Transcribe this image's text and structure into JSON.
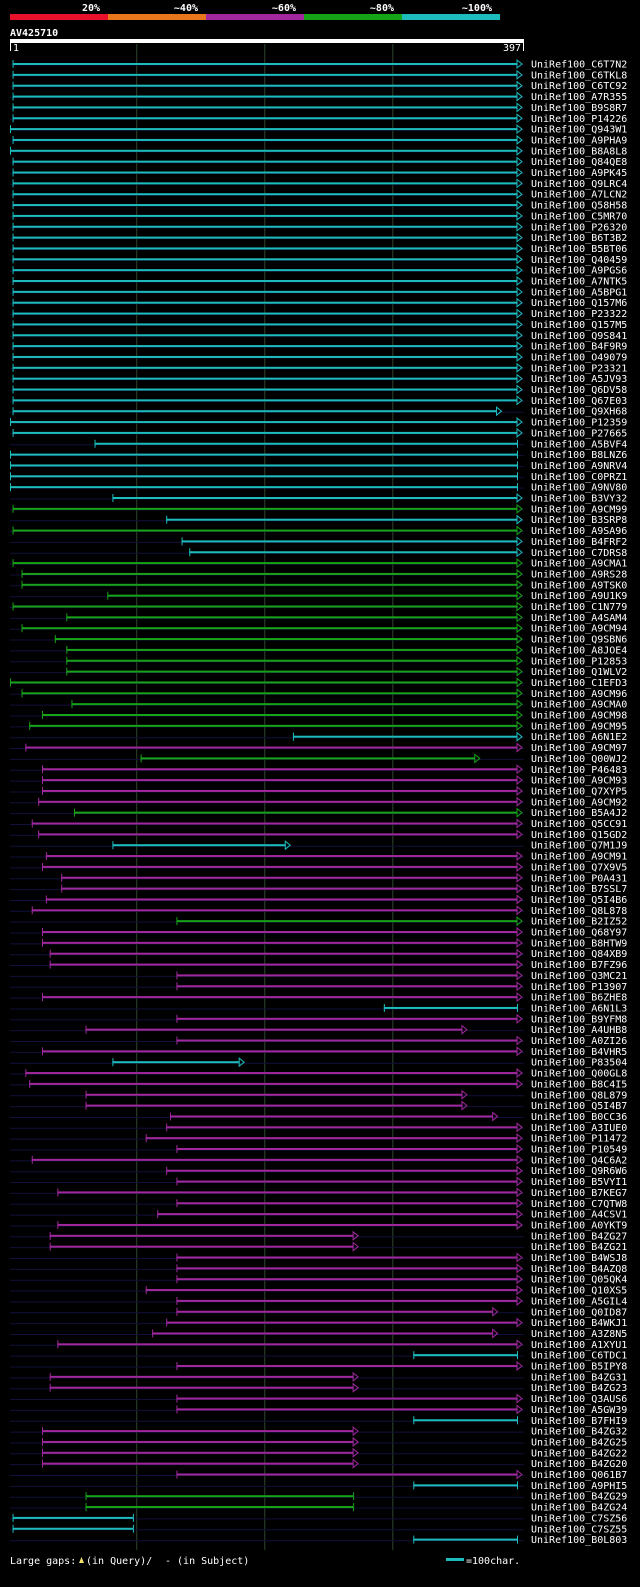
{
  "chart_data": {
    "type": "alignment-overview",
    "query_id": "AV425710",
    "query_start": "1",
    "query_end": "397",
    "qlen": 397,
    "scale": {
      "labels": [
        "20%",
        "~40%",
        "~60%",
        "~80%",
        "~100%"
      ],
      "colors": [
        "#e8102a",
        "#e8761c",
        "#a0289c",
        "#17a317",
        "#1cbcbc"
      ]
    },
    "legend": {
      "gaps_prefix": "Large gaps: ",
      "gaps_query": "(in Query)/",
      "gaps_subject": "- (in Subject)",
      "scale_label": "=100char."
    },
    "hits": [
      {
        "id": "UniRef100_C6T7N2",
        "s": 3,
        "e": 397,
        "c": "cy",
        "a": 1
      },
      {
        "id": "UniRef100_C6TKL8",
        "s": 3,
        "e": 397,
        "c": "cy",
        "a": 1
      },
      {
        "id": "UniRef100_C6TC92",
        "s": 3,
        "e": 397,
        "c": "cy",
        "a": 1
      },
      {
        "id": "UniRef100_A7R355",
        "s": 3,
        "e": 397,
        "c": "cy",
        "a": 1
      },
      {
        "id": "UniRef100_B9S8R7",
        "s": 3,
        "e": 397,
        "c": "cy",
        "a": 1
      },
      {
        "id": "UniRef100_P14226",
        "s": 3,
        "e": 397,
        "c": "cy",
        "a": 1
      },
      {
        "id": "UniRef100_Q943W1",
        "s": 1,
        "e": 397,
        "c": "cy",
        "a": 1
      },
      {
        "id": "UniRef100_A9PHA9",
        "s": 3,
        "e": 397,
        "c": "cy",
        "a": 1
      },
      {
        "id": "UniRef100_B8A8L8",
        "s": 1,
        "e": 397,
        "c": "cy",
        "a": 1
      },
      {
        "id": "UniRef100_Q84QE8",
        "s": 3,
        "e": 397,
        "c": "cy",
        "a": 1
      },
      {
        "id": "UniRef100_A9PK45",
        "s": 3,
        "e": 397,
        "c": "cy",
        "a": 1
      },
      {
        "id": "UniRef100_Q9LRC4",
        "s": 3,
        "e": 397,
        "c": "cy",
        "a": 1
      },
      {
        "id": "UniRef100_A7LCN2",
        "s": 3,
        "e": 397,
        "c": "cy",
        "a": 1
      },
      {
        "id": "UniRef100_Q58H58",
        "s": 3,
        "e": 397,
        "c": "cy",
        "a": 1
      },
      {
        "id": "UniRef100_C5MR70",
        "s": 3,
        "e": 397,
        "c": "cy",
        "a": 1
      },
      {
        "id": "UniRef100_P26320",
        "s": 3,
        "e": 397,
        "c": "cy",
        "a": 1
      },
      {
        "id": "UniRef100_B6T3B2",
        "s": 3,
        "e": 397,
        "c": "cy",
        "a": 1
      },
      {
        "id": "UniRef100_B5BT06",
        "s": 3,
        "e": 397,
        "c": "cy",
        "a": 1
      },
      {
        "id": "UniRef100_Q40459",
        "s": 3,
        "e": 397,
        "c": "cy",
        "a": 1
      },
      {
        "id": "UniRef100_A9PGS6",
        "s": 3,
        "e": 397,
        "c": "cy",
        "a": 1
      },
      {
        "id": "UniRef100_A7NTK5",
        "s": 3,
        "e": 397,
        "c": "cy",
        "a": 1
      },
      {
        "id": "UniRef100_A5BPG1",
        "s": 3,
        "e": 397,
        "c": "cy",
        "a": 1
      },
      {
        "id": "UniRef100_Q157M6",
        "s": 3,
        "e": 397,
        "c": "cy",
        "a": 1
      },
      {
        "id": "UniRef100_P23322",
        "s": 3,
        "e": 397,
        "c": "cy",
        "a": 1
      },
      {
        "id": "UniRef100_Q157M5",
        "s": 3,
        "e": 397,
        "c": "cy",
        "a": 1
      },
      {
        "id": "UniRef100_Q9S841",
        "s": 3,
        "e": 397,
        "c": "cy",
        "a": 1
      },
      {
        "id": "UniRef100_B4F9R9",
        "s": 3,
        "e": 397,
        "c": "cy",
        "a": 1
      },
      {
        "id": "UniRef100_O49079",
        "s": 3,
        "e": 397,
        "c": "cy",
        "a": 1
      },
      {
        "id": "UniRef100_P23321",
        "s": 3,
        "e": 397,
        "c": "cy",
        "a": 1
      },
      {
        "id": "UniRef100_A5JV93",
        "s": 3,
        "e": 397,
        "c": "cy",
        "a": 1
      },
      {
        "id": "UniRef100_Q6DV58",
        "s": 3,
        "e": 397,
        "c": "cy",
        "a": 1
      },
      {
        "id": "UniRef100_Q67E03",
        "s": 3,
        "e": 397,
        "c": "cy",
        "a": 1
      },
      {
        "id": "UniRef100_Q9XH68",
        "s": 3,
        "e": 381,
        "c": "cy",
        "a": 1
      },
      {
        "id": "UniRef100_P12359",
        "s": 1,
        "e": 397,
        "c": "cy",
        "a": 1
      },
      {
        "id": "UniRef100_P27665",
        "s": 3,
        "e": 397,
        "c": "cy",
        "a": 1
      },
      {
        "id": "UniRef100_A5BVF4",
        "s": 67,
        "e": 397,
        "c": "cy",
        "a": 0
      },
      {
        "id": "UniRef100_B8LNZ6",
        "s": 1,
        "e": 397,
        "c": "cy",
        "a": 0
      },
      {
        "id": "UniRef100_A9NRV4",
        "s": 1,
        "e": 397,
        "c": "cy",
        "a": 0
      },
      {
        "id": "UniRef100_C0PRZ1",
        "s": 1,
        "e": 397,
        "c": "cy",
        "a": 0
      },
      {
        "id": "UniRef100_A9NV80",
        "s": 1,
        "e": 397,
        "c": "cy",
        "a": 0
      },
      {
        "id": "UniRef100_B3VY32",
        "s": 81,
        "e": 397,
        "c": "cy",
        "a": 1
      },
      {
        "id": "UniRef100_A9CM99",
        "s": 3,
        "e": 397,
        "c": "gr",
        "a": 1
      },
      {
        "id": "UniRef100_B3SRP8",
        "s": 123,
        "e": 397,
        "c": "cy",
        "a": 1
      },
      {
        "id": "UniRef100_A9SA96",
        "s": 3,
        "e": 397,
        "c": "gr",
        "a": 1
      },
      {
        "id": "UniRef100_B4FRF2",
        "s": 135,
        "e": 397,
        "c": "cy",
        "a": 1
      },
      {
        "id": "UniRef100_C7DRS8",
        "s": 141,
        "e": 397,
        "c": "cy",
        "a": 1
      },
      {
        "id": "UniRef100_A9CMA1",
        "s": 3,
        "e": 397,
        "c": "gr",
        "a": 1
      },
      {
        "id": "UniRef100_A9RS28",
        "s": 10,
        "e": 397,
        "c": "gr",
        "a": 1
      },
      {
        "id": "UniRef100_A9TSK0",
        "s": 10,
        "e": 397,
        "c": "gr",
        "a": 1
      },
      {
        "id": "UniRef100_A9U1K9",
        "s": 77,
        "e": 397,
        "c": "gr",
        "a": 1
      },
      {
        "id": "UniRef100_C1N779",
        "s": 3,
        "e": 397,
        "c": "gr",
        "a": 1
      },
      {
        "id": "UniRef100_A4SAM4",
        "s": 45,
        "e": 397,
        "c": "gr",
        "a": 1
      },
      {
        "id": "UniRef100_A9CM94",
        "s": 10,
        "e": 397,
        "c": "gr",
        "a": 1
      },
      {
        "id": "UniRef100_Q9SBN6",
        "s": 36,
        "e": 397,
        "c": "gr",
        "a": 1
      },
      {
        "id": "UniRef100_A8JOE4",
        "s": 45,
        "e": 397,
        "c": "gr",
        "a": 1
      },
      {
        "id": "UniRef100_P12853",
        "s": 45,
        "e": 397,
        "c": "gr",
        "a": 1
      },
      {
        "id": "UniRef100_Q1WLV2",
        "s": 45,
        "e": 397,
        "c": "gr",
        "a": 1
      },
      {
        "id": "UniRef100_C1EFD3",
        "s": 1,
        "e": 397,
        "c": "gr",
        "a": 1
      },
      {
        "id": "UniRef100_A9CM96",
        "s": 10,
        "e": 397,
        "c": "gr",
        "a": 1
      },
      {
        "id": "UniRef100_A9CMA0",
        "s": 49,
        "e": 397,
        "c": "gr",
        "a": 1
      },
      {
        "id": "UniRef100_A9CM98",
        "s": 26,
        "e": 397,
        "c": "gr",
        "a": 1
      },
      {
        "id": "UniRef100_A9CM95",
        "s": 16,
        "e": 397,
        "c": "gr",
        "a": 1
      },
      {
        "id": "UniRef100_A6N1E2",
        "s": 222,
        "e": 397,
        "c": "cy",
        "a": 1
      },
      {
        "id": "UniRef100_A9CM97",
        "s": 13,
        "e": 397,
        "c": "pu",
        "a": 1
      },
      {
        "id": "UniRef100_Q00WJ2",
        "s": 103,
        "e": 364,
        "c": "gr",
        "a": 1
      },
      {
        "id": "UniRef100_P46483",
        "s": 26,
        "e": 397,
        "c": "pu",
        "a": 1
      },
      {
        "id": "UniRef100_A9CM93",
        "s": 26,
        "e": 397,
        "c": "pu",
        "a": 1
      },
      {
        "id": "UniRef100_Q7XYP5",
        "s": 26,
        "e": 397,
        "c": "pu",
        "a": 1
      },
      {
        "id": "UniRef100_A9CM92",
        "s": 23,
        "e": 397,
        "c": "pu",
        "a": 1
      },
      {
        "id": "UniRef100_B5A4J2",
        "s": 51,
        "e": 397,
        "c": "gr",
        "a": 1
      },
      {
        "id": "UniRef100_Q5CC91",
        "s": 18,
        "e": 397,
        "c": "pu",
        "a": 1
      },
      {
        "id": "UniRef100_Q15GD2",
        "s": 23,
        "e": 397,
        "c": "pu",
        "a": 1
      },
      {
        "id": "UniRef100_Q7M1J9",
        "s": 81,
        "e": 216,
        "c": "cy",
        "a": 1
      },
      {
        "id": "UniRef100_A9CM91",
        "s": 29,
        "e": 397,
        "c": "pu",
        "a": 1
      },
      {
        "id": "UniRef100_Q7X9V5",
        "s": 26,
        "e": 397,
        "c": "pu",
        "a": 1
      },
      {
        "id": "UniRef100_P0A431",
        "s": 41,
        "e": 397,
        "c": "pu",
        "a": 1
      },
      {
        "id": "UniRef100_B7SSL7",
        "s": 41,
        "e": 397,
        "c": "pu",
        "a": 1
      },
      {
        "id": "UniRef100_Q5I4B6",
        "s": 29,
        "e": 397,
        "c": "pu",
        "a": 1
      },
      {
        "id": "UniRef100_Q8L878",
        "s": 18,
        "e": 397,
        "c": "pu",
        "a": 1
      },
      {
        "id": "UniRef100_B2IZ52",
        "s": 131,
        "e": 397,
        "c": "gr",
        "a": 1
      },
      {
        "id": "UniRef100_Q68Y97",
        "s": 26,
        "e": 397,
        "c": "pu",
        "a": 1
      },
      {
        "id": "UniRef100_B8HTW9",
        "s": 26,
        "e": 397,
        "c": "pu",
        "a": 1
      },
      {
        "id": "UniRef100_Q84XB9",
        "s": 32,
        "e": 397,
        "c": "pu",
        "a": 1
      },
      {
        "id": "UniRef100_B7FZ96",
        "s": 32,
        "e": 397,
        "c": "pu",
        "a": 1
      },
      {
        "id": "UniRef100_Q3MC21",
        "s": 131,
        "e": 397,
        "c": "pu",
        "a": 1
      },
      {
        "id": "UniRef100_P13907",
        "s": 131,
        "e": 397,
        "c": "pu",
        "a": 1
      },
      {
        "id": "UniRef100_B6ZHE8",
        "s": 26,
        "e": 397,
        "c": "pu",
        "a": 1
      },
      {
        "id": "UniRef100_A6N1L3",
        "s": 293,
        "e": 397,
        "c": "cy",
        "a": 0
      },
      {
        "id": "UniRef100_B9YFM8",
        "s": 131,
        "e": 397,
        "c": "pu",
        "a": 1
      },
      {
        "id": "UniRef100_A4UHB8",
        "s": 60,
        "e": 354,
        "c": "pu",
        "a": 1
      },
      {
        "id": "UniRef100_A0ZI26",
        "s": 131,
        "e": 397,
        "c": "pu",
        "a": 1
      },
      {
        "id": "UniRef100_B4VHR5",
        "s": 26,
        "e": 397,
        "c": "pu",
        "a": 1
      },
      {
        "id": "UniRef100_P83504",
        "s": 81,
        "e": 180,
        "c": "cy",
        "a": 1
      },
      {
        "id": "UniRef100_Q00GL8",
        "s": 13,
        "e": 397,
        "c": "pu",
        "a": 1
      },
      {
        "id": "UniRef100_B8C4I5",
        "s": 16,
        "e": 397,
        "c": "pu",
        "a": 1
      },
      {
        "id": "UniRef100_Q8L879",
        "s": 60,
        "e": 354,
        "c": "pu",
        "a": 1
      },
      {
        "id": "UniRef100_Q5I4B7",
        "s": 60,
        "e": 354,
        "c": "pu",
        "a": 1
      },
      {
        "id": "UniRef100_B0CC36",
        "s": 126,
        "e": 378,
        "c": "pu",
        "a": 1
      },
      {
        "id": "UniRef100_A3IUE0",
        "s": 123,
        "e": 397,
        "c": "pu",
        "a": 1
      },
      {
        "id": "UniRef100_P11472",
        "s": 107,
        "e": 397,
        "c": "pu",
        "a": 1
      },
      {
        "id": "UniRef100_P10549",
        "s": 131,
        "e": 397,
        "c": "pu",
        "a": 1
      },
      {
        "id": "UniRef100_Q4C6A2",
        "s": 18,
        "e": 397,
        "c": "pu",
        "a": 1
      },
      {
        "id": "UniRef100_Q9R6W6",
        "s": 123,
        "e": 397,
        "c": "pu",
        "a": 1
      },
      {
        "id": "UniRef100_B5VYI1",
        "s": 131,
        "e": 397,
        "c": "pu",
        "a": 1
      },
      {
        "id": "UniRef100_B7KEG7",
        "s": 38,
        "e": 397,
        "c": "pu",
        "a": 1
      },
      {
        "id": "UniRef100_C7QTW8",
        "s": 131,
        "e": 397,
        "c": "pu",
        "a": 1
      },
      {
        "id": "UniRef100_A4CSV1",
        "s": 116,
        "e": 397,
        "c": "pu",
        "a": 1
      },
      {
        "id": "UniRef100_A0YKT9",
        "s": 38,
        "e": 397,
        "c": "pu",
        "a": 1
      },
      {
        "id": "UniRef100_B4ZG27",
        "s": 32,
        "e": 269,
        "c": "pu",
        "a": 1
      },
      {
        "id": "UniRef100_B4ZG21",
        "s": 32,
        "e": 269,
        "c": "pu",
        "a": 1
      },
      {
        "id": "UniRef100_B4WSJ8",
        "s": 131,
        "e": 397,
        "c": "pu",
        "a": 1
      },
      {
        "id": "UniRef100_B4AZQ8",
        "s": 131,
        "e": 397,
        "c": "pu",
        "a": 1
      },
      {
        "id": "UniRef100_Q05QK4",
        "s": 131,
        "e": 397,
        "c": "pu",
        "a": 1
      },
      {
        "id": "UniRef100_Q10XS5",
        "s": 107,
        "e": 397,
        "c": "pu",
        "a": 1
      },
      {
        "id": "UniRef100_A5GIL4",
        "s": 131,
        "e": 397,
        "c": "pu",
        "a": 1
      },
      {
        "id": "UniRef100_Q0ID87",
        "s": 131,
        "e": 378,
        "c": "pu",
        "a": 1
      },
      {
        "id": "UniRef100_B4WKJ1",
        "s": 123,
        "e": 397,
        "c": "pu",
        "a": 1
      },
      {
        "id": "UniRef100_A3Z8N5",
        "s": 112,
        "e": 378,
        "c": "pu",
        "a": 1
      },
      {
        "id": "UniRef100_A1XYU1",
        "s": 38,
        "e": 397,
        "c": "pu",
        "a": 1
      },
      {
        "id": "UniRef100_C6TDC1",
        "s": 316,
        "e": 397,
        "c": "cy",
        "a": 0
      },
      {
        "id": "UniRef100_B5IPY8",
        "s": 131,
        "e": 397,
        "c": "pu",
        "a": 1
      },
      {
        "id": "UniRef100_B4ZG31",
        "s": 32,
        "e": 269,
        "c": "pu",
        "a": 1
      },
      {
        "id": "UniRef100_B4ZG23",
        "s": 32,
        "e": 269,
        "c": "pu",
        "a": 1
      },
      {
        "id": "UniRef100_Q3AUS6",
        "s": 131,
        "e": 397,
        "c": "pu",
        "a": 1
      },
      {
        "id": "UniRef100_A5GW39",
        "s": 131,
        "e": 397,
        "c": "pu",
        "a": 1
      },
      {
        "id": "UniRef100_B7FHI9",
        "s": 316,
        "e": 397,
        "c": "cy",
        "a": 0
      },
      {
        "id": "UniRef100_B4ZG32",
        "s": 26,
        "e": 269,
        "c": "pu",
        "a": 1
      },
      {
        "id": "UniRef100_B4ZG25",
        "s": 26,
        "e": 269,
        "c": "pu",
        "a": 1
      },
      {
        "id": "UniRef100_B4ZG22",
        "s": 26,
        "e": 269,
        "c": "pu",
        "a": 1
      },
      {
        "id": "UniRef100_B4ZG20",
        "s": 26,
        "e": 269,
        "c": "pu",
        "a": 1
      },
      {
        "id": "UniRef100_Q061B7",
        "s": 131,
        "e": 397,
        "c": "pu",
        "a": 1
      },
      {
        "id": "UniRef100_A9PHI5",
        "s": 316,
        "e": 397,
        "c": "cy",
        "a": 0
      },
      {
        "id": "UniRef100_B4ZG29",
        "s": 60,
        "e": 269,
        "c": "gr",
        "a": 0
      },
      {
        "id": "UniRef100_B4ZG24",
        "s": 60,
        "e": 269,
        "c": "gr",
        "a": 0
      },
      {
        "id": "UniRef100_C7SZ56",
        "s": 3,
        "e": 97,
        "c": "cy",
        "a": 0
      },
      {
        "id": "UniRef100_C7SZ55",
        "s": 3,
        "e": 97,
        "c": "cy",
        "a": 0
      },
      {
        "id": "UniRef100_B0L803",
        "s": 316,
        "e": 397,
        "c": "cy",
        "a": 0
      }
    ]
  }
}
